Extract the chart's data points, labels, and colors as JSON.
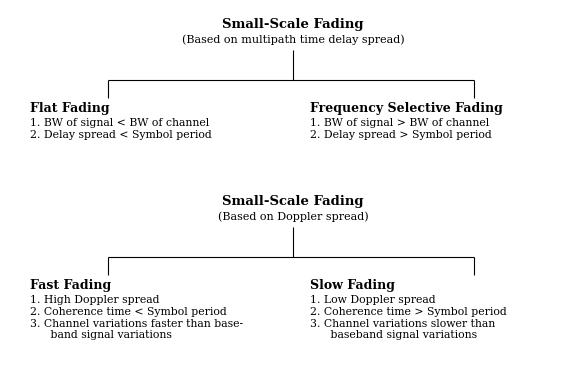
{
  "background_color": "#ffffff",
  "top_title": "Small-Scale Fading",
  "top_subtitle": "(Based on multipath time delay spread)",
  "top_left_header": "Flat Fading",
  "top_left_points": [
    "1. BW of signal < BW of channel",
    "2. Delay spread < Symbol period"
  ],
  "top_right_header": "Frequency Selective Fading",
  "top_right_points": [
    "1. BW of signal > BW of channel",
    "2. Delay spread > Symbol period"
  ],
  "bottom_title": "Small-Scale Fading",
  "bottom_subtitle": "(Based on Doppler spread)",
  "bottom_left_header": "Fast Fading",
  "bottom_left_points_1": "1. High Doppler spread",
  "bottom_left_points_2": "2. Coherence time < Symbol period",
  "bottom_left_points_3a": "3. Channel variations faster than base-",
  "bottom_left_points_3b": "   band signal variations",
  "bottom_right_header": "Slow Fading",
  "bottom_right_points_1": "1. Low Doppler spread",
  "bottom_right_points_2": "2. Coherence time > Symbol period",
  "bottom_right_points_3a": "3. Channel variations slower than",
  "bottom_right_points_3b": "   baseband signal variations",
  "fig_width": 5.87,
  "fig_height": 3.7,
  "dpi": 100
}
